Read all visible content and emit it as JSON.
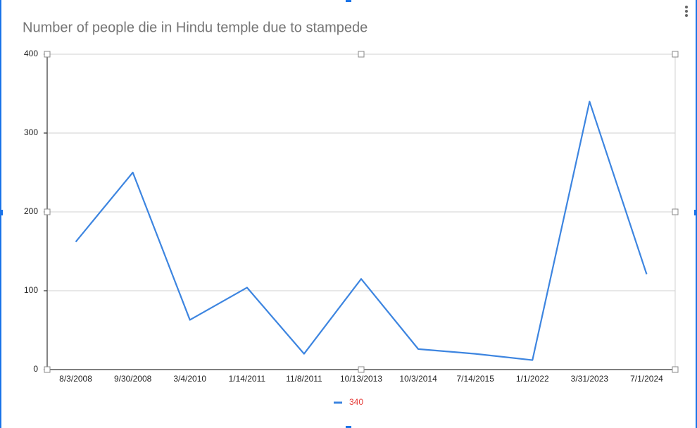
{
  "chart_data": {
    "type": "line",
    "title": "Number of people die in Hindu temple due to stampede",
    "categories": [
      "8/3/2008",
      "9/30/2008",
      "3/4/2010",
      "1/14/2011",
      "11/8/2011",
      "10/13/2013",
      "10/3/2014",
      "7/14/2015",
      "1/1/2022",
      "3/31/2023",
      "7/1/2024"
    ],
    "series": [
      {
        "name": "340",
        "color": "#3d85e0",
        "values": [
          162,
          250,
          63,
          104,
          20,
          115,
          26,
          20,
          12,
          340,
          121
        ]
      }
    ],
    "ylim": [
      0,
      400
    ],
    "yticks": [
      0,
      100,
      200,
      300,
      400
    ],
    "grid": true,
    "legend": "bottom"
  }
}
